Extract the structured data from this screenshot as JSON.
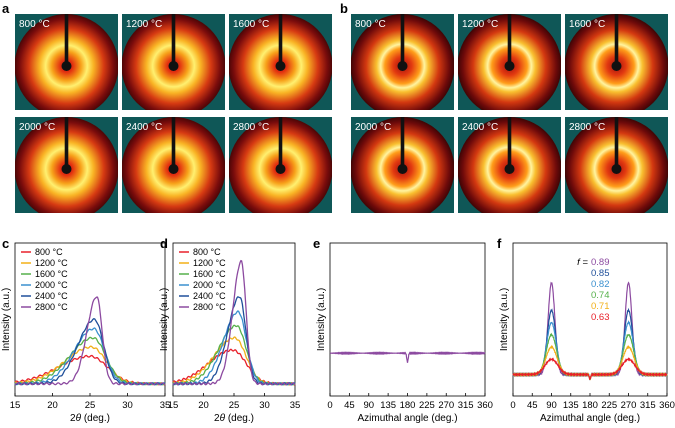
{
  "panels": {
    "a": {
      "label": "a",
      "temps": [
        "800 °C",
        "1200 °C",
        "1600 °C",
        "2000 °C",
        "2400 °C",
        "2800 °C"
      ]
    },
    "b": {
      "label": "b",
      "temps": [
        "800 °C",
        "1200 °C",
        "1600 °C",
        "2000 °C",
        "2400 °C",
        "2800 °C"
      ]
    }
  },
  "colors": {
    "series": [
      "#e8202a",
      "#f2b019",
      "#56b04a",
      "#3a90cf",
      "#1f4f9a",
      "#8c4aa0"
    ],
    "teal": "#0f5757"
  },
  "chart_data": [
    {
      "id": "c",
      "label": "c",
      "type": "line",
      "xlabel_prefix": "2",
      "xlabel_symbol": "θ",
      "xlabel_suffix": " (deg.)",
      "ylabel": "Intensity (a.u.)",
      "xlim": [
        15,
        35
      ],
      "ylim": [
        0,
        100
      ],
      "xticks": [
        "15",
        "20",
        "25",
        "30",
        "35"
      ],
      "series": [
        {
          "name": "800 °C",
          "peak": 25.0,
          "height": 18,
          "base": 8,
          "width": 4.2
        },
        {
          "name": "1200 °C",
          "peak": 25.2,
          "height": 24,
          "base": 8,
          "width": 3.6
        },
        {
          "name": "1600 °C",
          "peak": 25.4,
          "height": 30,
          "base": 8,
          "width": 3.1
        },
        {
          "name": "2000 °C",
          "peak": 25.5,
          "height": 36,
          "base": 8,
          "width": 2.6
        },
        {
          "name": "2400 °C",
          "peak": 25.6,
          "height": 42,
          "base": 8,
          "width": 2.2
        },
        {
          "name": "2800 °C",
          "peak": 25.9,
          "height": 57,
          "base": 8,
          "width": 1.3
        }
      ]
    },
    {
      "id": "d",
      "label": "d",
      "type": "line",
      "xlabel_prefix": "2",
      "xlabel_symbol": "θ",
      "xlabel_suffix": " (deg.)",
      "ylabel": "Intensity (a.u.)",
      "xlim": [
        15,
        35
      ],
      "ylim": [
        0,
        100
      ],
      "xticks": [
        "15",
        "20",
        "25",
        "30",
        "35"
      ],
      "series": [
        {
          "name": "800 °C",
          "peak": 24.8,
          "height": 22,
          "base": 8,
          "width": 4.0
        },
        {
          "name": "1200 °C",
          "peak": 25.1,
          "height": 30,
          "base": 8,
          "width": 3.4
        },
        {
          "name": "1600 °C",
          "peak": 25.4,
          "height": 38,
          "base": 8,
          "width": 2.9
        },
        {
          "name": "2000 °C",
          "peak": 25.7,
          "height": 47,
          "base": 8,
          "width": 2.4
        },
        {
          "name": "2400 °C",
          "peak": 25.9,
          "height": 57,
          "base": 8,
          "width": 1.9
        },
        {
          "name": "2800 °C",
          "peak": 26.2,
          "height": 80,
          "base": 8,
          "width": 1.4
        }
      ]
    },
    {
      "id": "e",
      "label": "e",
      "type": "line",
      "xlabel": "Azimuthal angle (deg.)",
      "ylabel": "Intensity (a.u.)",
      "xlim": [
        0,
        360
      ],
      "ylim": [
        0,
        100
      ],
      "xticks": [
        "0",
        "45",
        "90",
        "135",
        "180",
        "225",
        "270",
        "315",
        "360"
      ],
      "baseline": 28,
      "dip_at": 180,
      "dip_depth": 6
    },
    {
      "id": "f",
      "label": "f",
      "type": "line",
      "xlabel": "Azimuthal angle (deg.)",
      "ylabel": "Intensity (a.u.)",
      "xlim": [
        0,
        360
      ],
      "ylim": [
        0,
        100
      ],
      "xticks": [
        "0",
        "45",
        "90",
        "135",
        "180",
        "225",
        "270",
        "315",
        "360"
      ],
      "legend_prefix": "f = ",
      "series": [
        {
          "name": "0.89",
          "height": 60,
          "width": 8
        },
        {
          "name": "0.85",
          "height": 42,
          "width": 10
        },
        {
          "name": "0.82",
          "height": 34,
          "width": 11
        },
        {
          "name": "0.74",
          "height": 26,
          "width": 12
        },
        {
          "name": "0.71",
          "height": 18,
          "width": 13
        },
        {
          "name": "0.63",
          "height": 10,
          "width": 15
        }
      ]
    }
  ]
}
